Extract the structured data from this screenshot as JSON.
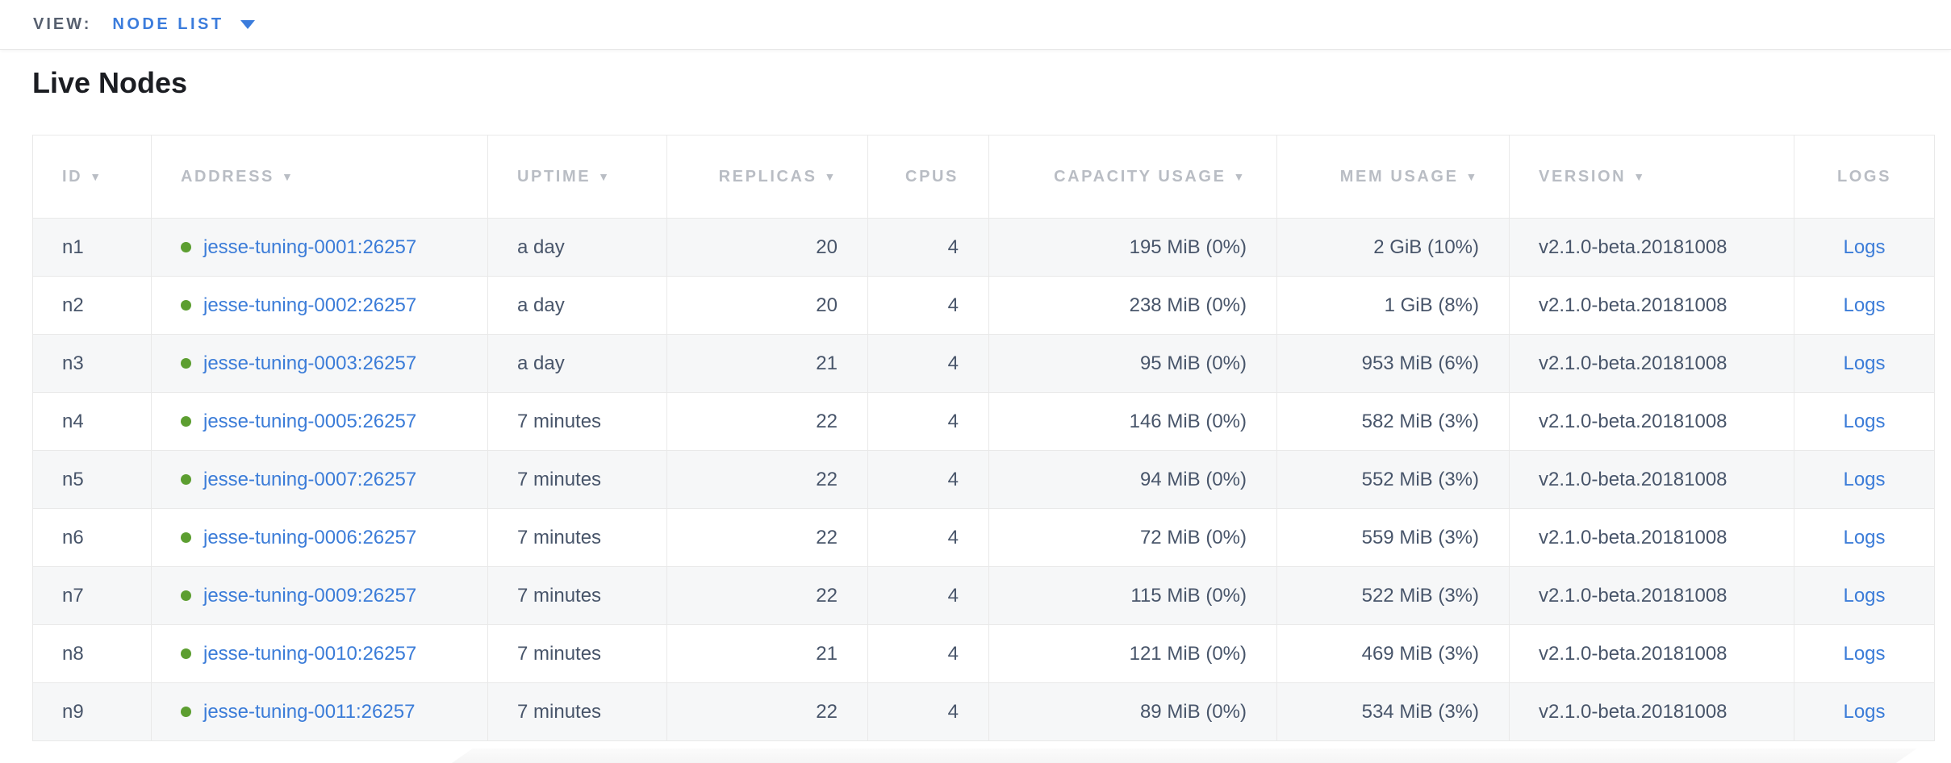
{
  "view_bar": {
    "label": "VIEW:",
    "selected": "NODE LIST"
  },
  "page": {
    "title": "Live Nodes"
  },
  "icons": {
    "sort_arrow": "▼"
  },
  "colors": {
    "accent_blue": "#3b7cdc",
    "link_blue": "#3b7cd8",
    "node_status_green": "#5c9e30",
    "header_text_gray": "#b9bdc4",
    "cell_text_slate": "#48556a",
    "row_stripe": "#f6f7f8",
    "table_border": "#e9e9e9"
  },
  "table": {
    "columns": [
      {
        "key": "id",
        "label": "ID",
        "sortable": true,
        "align": "left"
      },
      {
        "key": "address",
        "label": "ADDRESS",
        "sortable": true,
        "align": "left"
      },
      {
        "key": "uptime",
        "label": "UPTIME",
        "sortable": true,
        "align": "left"
      },
      {
        "key": "replicas",
        "label": "REPLICAS",
        "sortable": true,
        "align": "right"
      },
      {
        "key": "cpus",
        "label": "CPUS",
        "sortable": false,
        "align": "right"
      },
      {
        "key": "capacity",
        "label": "CAPACITY USAGE",
        "sortable": true,
        "align": "right"
      },
      {
        "key": "mem",
        "label": "MEM USAGE",
        "sortable": true,
        "align": "right"
      },
      {
        "key": "version",
        "label": "VERSION",
        "sortable": true,
        "align": "left"
      },
      {
        "key": "logs",
        "label": "LOGS",
        "sortable": false,
        "align": "center"
      }
    ],
    "rows": [
      {
        "id": "n1",
        "address": "jesse-tuning-0001:26257",
        "uptime": "a day",
        "replicas": "20",
        "cpus": "4",
        "capacity": "195 MiB (0%)",
        "mem": "2 GiB (10%)",
        "version": "v2.1.0-beta.20181008",
        "logs": "Logs"
      },
      {
        "id": "n2",
        "address": "jesse-tuning-0002:26257",
        "uptime": "a day",
        "replicas": "20",
        "cpus": "4",
        "capacity": "238 MiB (0%)",
        "mem": "1 GiB (8%)",
        "version": "v2.1.0-beta.20181008",
        "logs": "Logs"
      },
      {
        "id": "n3",
        "address": "jesse-tuning-0003:26257",
        "uptime": "a day",
        "replicas": "21",
        "cpus": "4",
        "capacity": "95 MiB (0%)",
        "mem": "953 MiB (6%)",
        "version": "v2.1.0-beta.20181008",
        "logs": "Logs"
      },
      {
        "id": "n4",
        "address": "jesse-tuning-0005:26257",
        "uptime": "7 minutes",
        "replicas": "22",
        "cpus": "4",
        "capacity": "146 MiB (0%)",
        "mem": "582 MiB (3%)",
        "version": "v2.1.0-beta.20181008",
        "logs": "Logs"
      },
      {
        "id": "n5",
        "address": "jesse-tuning-0007:26257",
        "uptime": "7 minutes",
        "replicas": "22",
        "cpus": "4",
        "capacity": "94 MiB (0%)",
        "mem": "552 MiB (3%)",
        "version": "v2.1.0-beta.20181008",
        "logs": "Logs"
      },
      {
        "id": "n6",
        "address": "jesse-tuning-0006:26257",
        "uptime": "7 minutes",
        "replicas": "22",
        "cpus": "4",
        "capacity": "72 MiB (0%)",
        "mem": "559 MiB (3%)",
        "version": "v2.1.0-beta.20181008",
        "logs": "Logs"
      },
      {
        "id": "n7",
        "address": "jesse-tuning-0009:26257",
        "uptime": "7 minutes",
        "replicas": "22",
        "cpus": "4",
        "capacity": "115 MiB (0%)",
        "mem": "522 MiB (3%)",
        "version": "v2.1.0-beta.20181008",
        "logs": "Logs"
      },
      {
        "id": "n8",
        "address": "jesse-tuning-0010:26257",
        "uptime": "7 minutes",
        "replicas": "21",
        "cpus": "4",
        "capacity": "121 MiB (0%)",
        "mem": "469 MiB (3%)",
        "version": "v2.1.0-beta.20181008",
        "logs": "Logs"
      },
      {
        "id": "n9",
        "address": "jesse-tuning-0011:26257",
        "uptime": "7 minutes",
        "replicas": "22",
        "cpus": "4",
        "capacity": "89 MiB (0%)",
        "mem": "534 MiB (3%)",
        "version": "v2.1.0-beta.20181008",
        "logs": "Logs"
      }
    ]
  }
}
